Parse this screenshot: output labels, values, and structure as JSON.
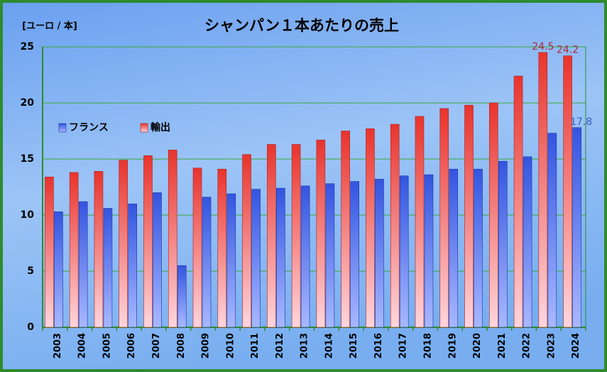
{
  "chart_data": {
    "type": "bar",
    "title": "シャンパン１本あたりの売上",
    "y_label": "[ユーロ / 本]",
    "categories": [
      "2003",
      "2004",
      "2005",
      "2006",
      "2007",
      "2008",
      "2009",
      "2010",
      "2011",
      "2012",
      "2013",
      "2014",
      "2015",
      "2016",
      "2017",
      "2018",
      "2019",
      "2020",
      "2021",
      "2022",
      "2023",
      "2024"
    ],
    "series": [
      {
        "name": "輸出",
        "color": "#e8342c",
        "label_color": "#b0283c",
        "values": [
          13.4,
          13.8,
          13.9,
          14.9,
          15.3,
          15.8,
          14.2,
          14.1,
          15.4,
          16.3,
          16.3,
          16.7,
          17.5,
          17.7,
          18.1,
          18.8,
          19.5,
          19.8,
          20.0,
          22.4,
          24.5,
          24.2
        ],
        "labeled_points": [
          20,
          21
        ]
      },
      {
        "name": "フランス",
        "color": "#3355e0",
        "label_color": "#3b5cc4",
        "values": [
          10.3,
          11.2,
          10.6,
          11.0,
          12.0,
          5.5,
          11.6,
          11.9,
          12.3,
          12.4,
          12.6,
          12.8,
          13.0,
          13.2,
          13.5,
          13.6,
          14.1,
          14.1,
          14.8,
          15.2,
          17.3,
          17.8
        ],
        "labeled_points": [
          21
        ]
      }
    ],
    "ylim": [
      0,
      25
    ],
    "yticks": [
      0,
      5,
      10,
      15,
      20,
      25
    ],
    "grid": true,
    "legend_order": [
      1,
      0
    ]
  }
}
